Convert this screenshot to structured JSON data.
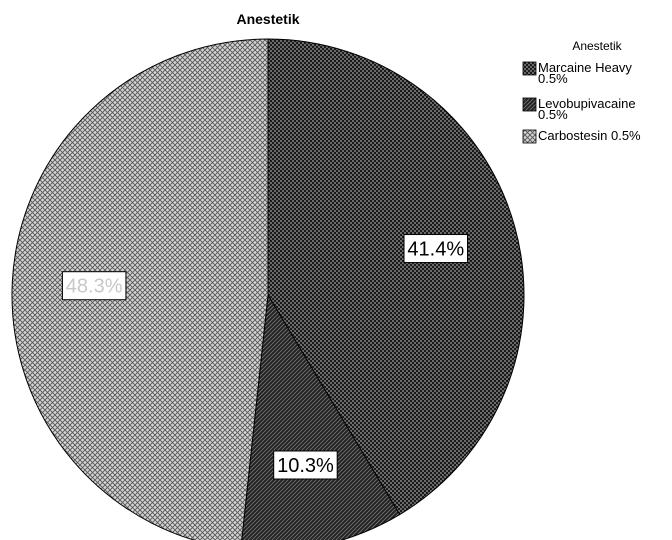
{
  "chart_data": {
    "type": "pie",
    "title": "Anestetik",
    "legend_title": "Anestetik",
    "legend_position": "top-right",
    "categories": [
      "Marcaine Heavy 0.5%",
      "Levobupivacaine 0.5%",
      "Carbostesin 0.5%"
    ],
    "legend_lines": [
      [
        "Marcaine Heavy",
        "0.5%"
      ],
      [
        "Levobupivacaine",
        "0.5%"
      ],
      [
        "Carbostesin 0.5%"
      ]
    ],
    "values": [
      41.4,
      10.3,
      48.3
    ],
    "labels": [
      "41.4%",
      "10.3%",
      "48.3%"
    ],
    "patterns": [
      "dark-checker",
      "dark-diagonal",
      "light-crosshatch"
    ]
  }
}
